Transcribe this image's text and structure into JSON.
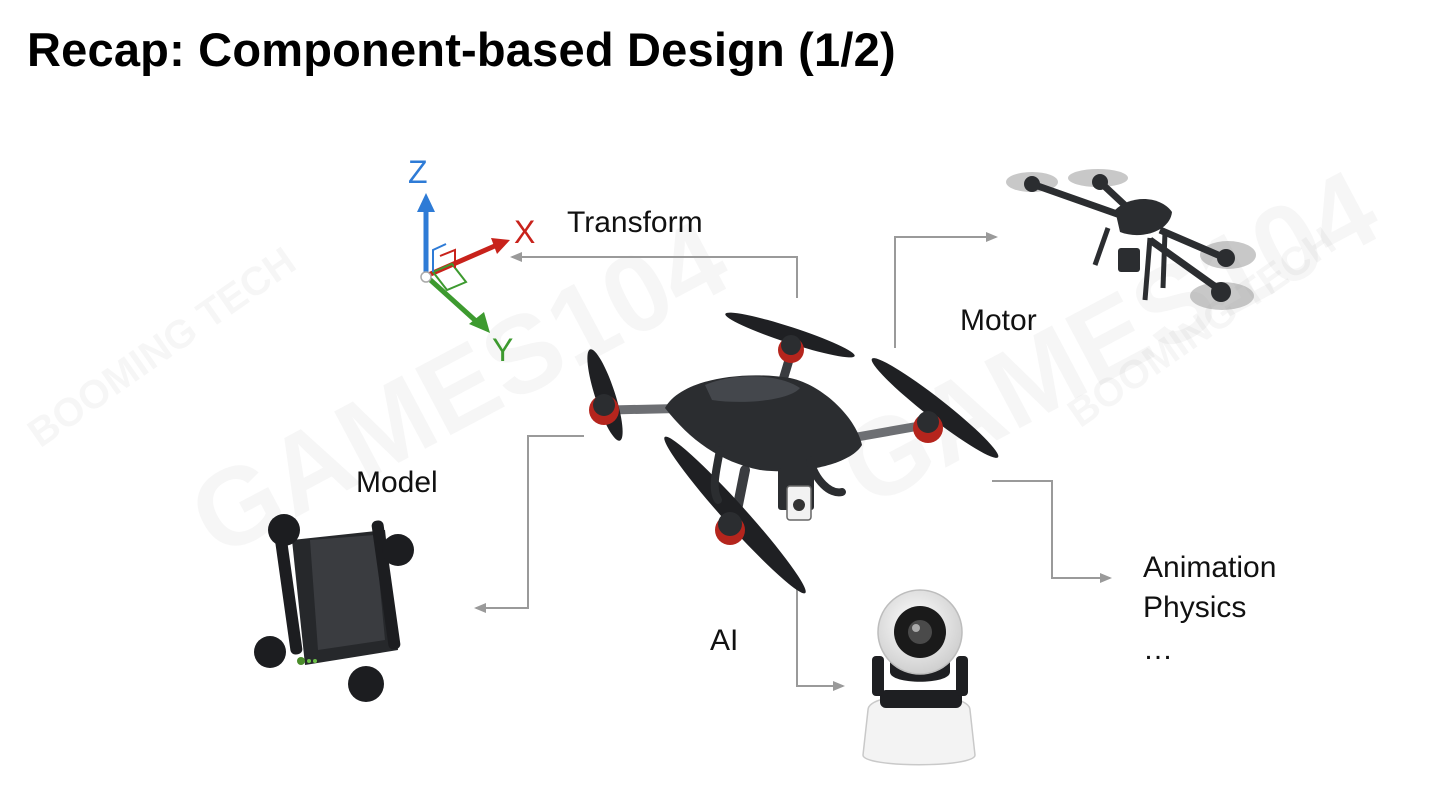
{
  "slide": {
    "title": "Recap: Component-based Design (1/2)"
  },
  "axes": {
    "z": "Z",
    "x": "X",
    "y": "Y"
  },
  "labels": {
    "transform": "Transform",
    "motor": "Motor",
    "model": "Model",
    "ai": "AI",
    "animation": "Animation",
    "physics": "Physics",
    "ellipsis": "…"
  },
  "watermarks": [
    "GAMES104",
    "BOOMING TECH"
  ],
  "colors": {
    "axis_z": "#2e7bd6",
    "axis_x": "#c8221b",
    "axis_y": "#3d9a2f",
    "connector": "#9a9a9a",
    "drone_body": "#2b2d30",
    "prop_accent": "#b5251d"
  }
}
